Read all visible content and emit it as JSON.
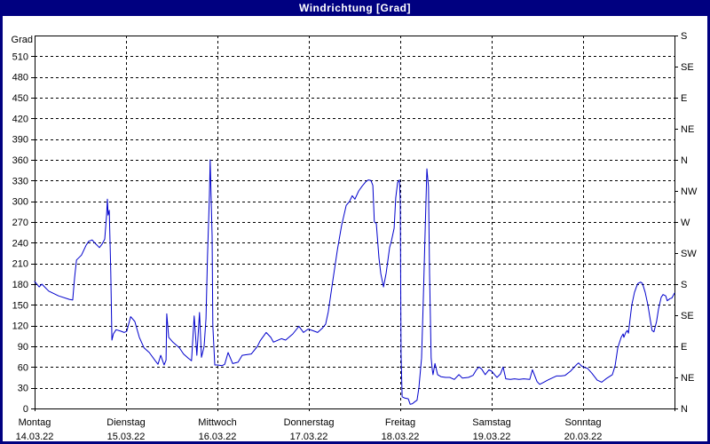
{
  "window": {
    "title": "Windrichtung [Grad]"
  },
  "colors": {
    "titlebar": "#000080",
    "titlebar_text": "#ffffff",
    "frame": "#000080",
    "background": "#ffffff",
    "line": "#0000cc",
    "grid": "#000000",
    "text": "#000000"
  },
  "chart_data": {
    "type": "line",
    "title": "Windrichtung [Grad]",
    "y_axis_left": {
      "unit": "Grad",
      "min": 0,
      "max": 540,
      "tick_step": 30,
      "tick_labels": [
        0,
        30,
        60,
        90,
        120,
        150,
        180,
        210,
        240,
        270,
        300,
        330,
        360,
        390,
        420,
        450,
        480,
        510
      ]
    },
    "y_axis_right": {
      "labels": [
        {
          "deg": 0,
          "dir": "N"
        },
        {
          "deg": 45,
          "dir": "NE"
        },
        {
          "deg": 90,
          "dir": "E"
        },
        {
          "deg": 135,
          "dir": "SE"
        },
        {
          "deg": 180,
          "dir": "S"
        },
        {
          "deg": 225,
          "dir": "SW"
        },
        {
          "deg": 270,
          "dir": "W"
        },
        {
          "deg": 315,
          "dir": "NW"
        },
        {
          "deg": 360,
          "dir": "N"
        },
        {
          "deg": 405,
          "dir": "NE"
        },
        {
          "deg": 450,
          "dir": "E"
        },
        {
          "deg": 495,
          "dir": "SE"
        },
        {
          "deg": 540,
          "dir": "S"
        }
      ]
    },
    "x_axis": {
      "unit": "hours",
      "range": [
        0,
        168
      ],
      "day_width_hours": 24,
      "days": [
        {
          "name": "Montag",
          "date": "14.03.22"
        },
        {
          "name": "Dienstag",
          "date": "15.03.22"
        },
        {
          "name": "Mittwoch",
          "date": "16.03.22"
        },
        {
          "name": "Donnerstag",
          "date": "17.03.22"
        },
        {
          "name": "Freitag",
          "date": "18.03.22"
        },
        {
          "name": "Samstag",
          "date": "19.03.22"
        },
        {
          "name": "Sonntag",
          "date": "20.03.22"
        }
      ]
    },
    "grid": {
      "horizontal_step_deg": 30,
      "vertical_step_hours": 24,
      "style": "dashed"
    },
    "series": [
      {
        "name": "Windrichtung",
        "unit": "Grad",
        "color": "#0000cc",
        "points": [
          [
            0,
            184
          ],
          [
            1.2,
            176
          ],
          [
            1.9,
            180
          ],
          [
            3.7,
            170
          ],
          [
            6.3,
            163
          ],
          [
            9.1,
            158
          ],
          [
            10,
            157
          ],
          [
            10.5,
            190
          ],
          [
            11,
            215
          ],
          [
            12.3,
            222
          ],
          [
            13.5,
            236
          ],
          [
            14.2,
            242
          ],
          [
            15.1,
            244
          ],
          [
            16.1,
            238
          ],
          [
            17,
            233
          ],
          [
            17.7,
            238
          ],
          [
            18.4,
            245
          ],
          [
            18.9,
            280
          ],
          [
            19.1,
            303
          ],
          [
            19.3,
            280
          ],
          [
            19.6,
            287
          ],
          [
            19.8,
            241
          ],
          [
            20,
            198
          ],
          [
            20.3,
            99
          ],
          [
            20.7,
            108
          ],
          [
            21.4,
            114
          ],
          [
            22.6,
            112
          ],
          [
            23.5,
            110
          ],
          [
            24.2,
            112
          ],
          [
            25.2,
            133
          ],
          [
            26.3,
            126
          ],
          [
            27.5,
            103
          ],
          [
            28.7,
            88
          ],
          [
            30.1,
            81
          ],
          [
            31.7,
            69
          ],
          [
            32.4,
            64
          ],
          [
            33.1,
            77
          ],
          [
            34,
            63
          ],
          [
            34.5,
            70
          ],
          [
            34.7,
            137
          ],
          [
            35.2,
            103
          ],
          [
            36.3,
            96
          ],
          [
            38,
            88
          ],
          [
            39.1,
            79
          ],
          [
            40.3,
            73
          ],
          [
            41.2,
            69
          ],
          [
            41.9,
            134
          ],
          [
            42.6,
            77
          ],
          [
            43.3,
            139
          ],
          [
            43.8,
            74
          ],
          [
            44.5,
            90
          ],
          [
            45,
            130
          ],
          [
            45.4,
            220
          ],
          [
            45.9,
            310
          ],
          [
            46.1,
            360
          ],
          [
            46.6,
            250
          ],
          [
            46.8,
            120
          ],
          [
            47.3,
            63
          ],
          [
            48,
            63
          ],
          [
            49.2,
            62
          ],
          [
            49.9,
            64
          ],
          [
            50.8,
            81
          ],
          [
            52,
            65
          ],
          [
            53.4,
            67
          ],
          [
            54.5,
            77
          ],
          [
            56.9,
            79
          ],
          [
            58.5,
            90
          ],
          [
            59.2,
            98
          ],
          [
            60.8,
            110
          ],
          [
            62,
            103
          ],
          [
            62.7,
            96
          ],
          [
            64.8,
            101
          ],
          [
            65.9,
            99
          ],
          [
            67.8,
            108
          ],
          [
            69.4,
            119
          ],
          [
            70.6,
            110
          ],
          [
            71.8,
            115
          ],
          [
            72.9,
            113
          ],
          [
            74.3,
            110
          ],
          [
            75.5,
            116
          ],
          [
            76.4,
            122
          ],
          [
            77.1,
            140
          ],
          [
            78.3,
            185
          ],
          [
            79.5,
            230
          ],
          [
            80.6,
            265
          ],
          [
            81.8,
            294
          ],
          [
            82.7,
            300
          ],
          [
            83.4,
            308
          ],
          [
            84.1,
            303
          ],
          [
            85.1,
            315
          ],
          [
            86,
            322
          ],
          [
            86.9,
            328
          ],
          [
            87.6,
            331
          ],
          [
            88.3,
            330
          ],
          [
            88.8,
            323
          ],
          [
            89.2,
            270
          ],
          [
            89.7,
            268
          ],
          [
            90.4,
            218
          ],
          [
            90.9,
            195
          ],
          [
            91.6,
            176
          ],
          [
            92.3,
            196
          ],
          [
            92.7,
            212
          ],
          [
            93.2,
            233
          ],
          [
            93.7,
            243
          ],
          [
            94.4,
            261
          ],
          [
            94.8,
            305
          ],
          [
            95.3,
            327
          ],
          [
            95.8,
            331
          ],
          [
            96,
            300
          ],
          [
            96.2,
            80
          ],
          [
            96.5,
            17
          ],
          [
            97.2,
            15
          ],
          [
            98.1,
            14
          ],
          [
            98.6,
            6
          ],
          [
            99.2,
            7
          ],
          [
            99.9,
            10
          ],
          [
            100.4,
            12
          ],
          [
            100.9,
            30
          ],
          [
            101.1,
            43
          ],
          [
            101.6,
            73
          ],
          [
            102,
            150
          ],
          [
            102.5,
            250
          ],
          [
            103,
            347
          ],
          [
            103.4,
            321
          ],
          [
            103.7,
            197
          ],
          [
            104.1,
            73
          ],
          [
            104.4,
            56
          ],
          [
            104.6,
            49
          ],
          [
            105.1,
            65
          ],
          [
            105.8,
            49
          ],
          [
            106.7,
            46
          ],
          [
            107.9,
            45
          ],
          [
            109,
            45
          ],
          [
            110.2,
            42
          ],
          [
            111.4,
            49
          ],
          [
            112.3,
            44
          ],
          [
            113.9,
            45
          ],
          [
            115.1,
            48
          ],
          [
            116,
            56
          ],
          [
            116.7,
            60
          ],
          [
            117.4,
            57
          ],
          [
            118.3,
            49
          ],
          [
            119.3,
            56
          ],
          [
            120,
            54
          ],
          [
            120.9,
            48
          ],
          [
            121.4,
            45
          ],
          [
            122.3,
            50
          ],
          [
            123,
            60
          ],
          [
            123.7,
            43
          ],
          [
            124.9,
            42
          ],
          [
            126,
            43
          ],
          [
            127.2,
            42
          ],
          [
            128.4,
            43
          ],
          [
            130,
            42
          ],
          [
            130.7,
            56
          ],
          [
            131.9,
            39
          ],
          [
            132.6,
            35
          ],
          [
            133.7,
            38
          ],
          [
            134.7,
            41
          ],
          [
            135.8,
            44
          ],
          [
            137,
            47
          ],
          [
            138.2,
            47
          ],
          [
            139.3,
            48
          ],
          [
            140.7,
            54
          ],
          [
            142.4,
            64
          ],
          [
            142.8,
            66
          ],
          [
            143.5,
            62
          ],
          [
            144,
            60
          ],
          [
            145.2,
            58
          ],
          [
            146.3,
            51
          ],
          [
            147.7,
            41
          ],
          [
            148.9,
            38
          ],
          [
            150,
            43
          ],
          [
            151.7,
            49
          ],
          [
            152.4,
            62
          ],
          [
            153.1,
            88
          ],
          [
            154,
            103
          ],
          [
            154.5,
            108
          ],
          [
            154.7,
            103
          ],
          [
            155.2,
            110
          ],
          [
            155.6,
            113
          ],
          [
            155.9,
            109
          ],
          [
            156.3,
            128
          ],
          [
            156.8,
            150
          ],
          [
            157.5,
            168
          ],
          [
            158,
            176
          ],
          [
            158.4,
            181
          ],
          [
            159.1,
            183
          ],
          [
            159.6,
            181
          ],
          [
            160.3,
            168
          ],
          [
            161,
            150
          ],
          [
            161.7,
            126
          ],
          [
            162.1,
            113
          ],
          [
            162.6,
            111
          ],
          [
            163.3,
            126
          ],
          [
            163.8,
            144
          ],
          [
            164.5,
            161
          ],
          [
            165,
            165
          ],
          [
            165.7,
            163
          ],
          [
            166.1,
            156
          ],
          [
            166.8,
            159
          ],
          [
            167.3,
            160
          ],
          [
            168,
            167
          ]
        ]
      }
    ]
  }
}
